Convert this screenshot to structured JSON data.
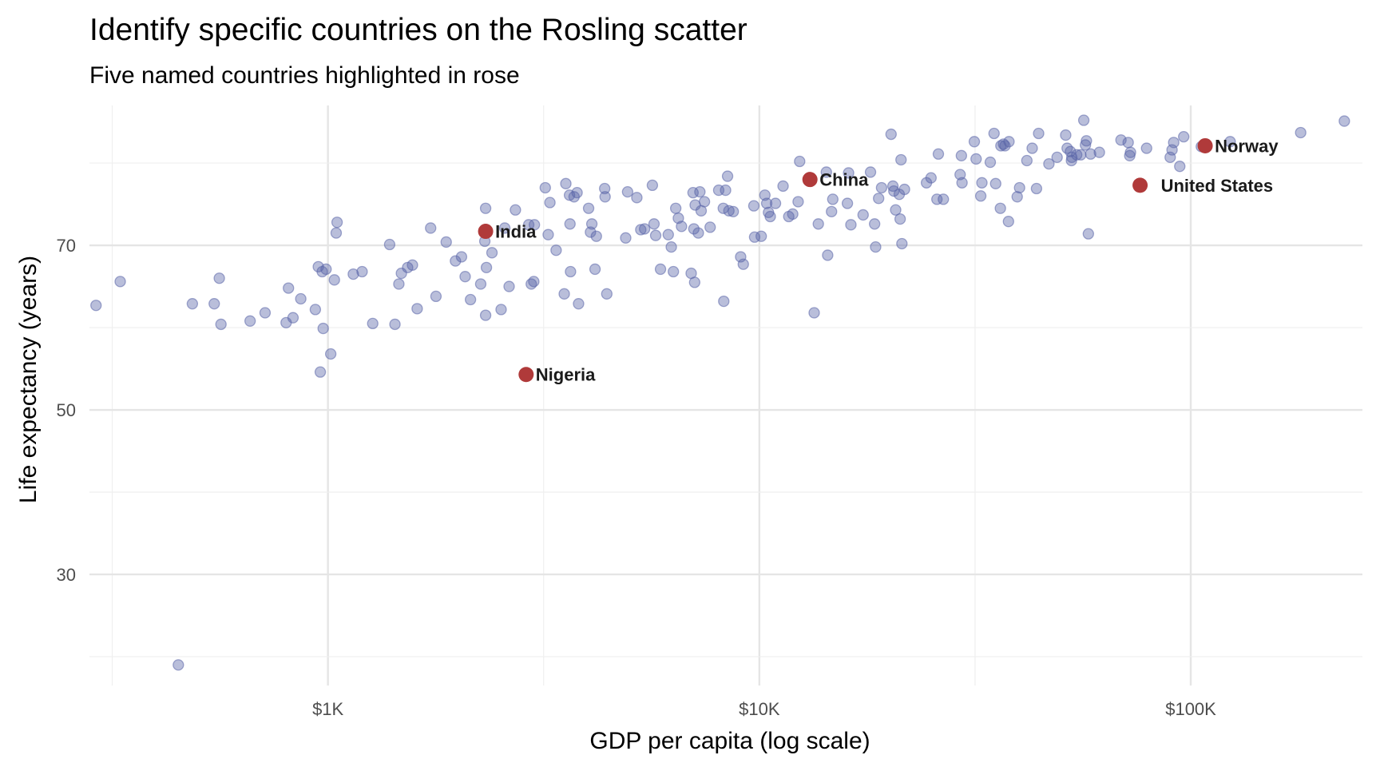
{
  "chart_data": {
    "type": "scatter",
    "title": "Identify specific countries on the Rosling scatter",
    "subtitle": "Five named countries highlighted in rose",
    "xlabel": "GDP per capita (log scale)",
    "ylabel": "Life expectancy (years)",
    "x_scale": "log10",
    "xlim": [
      280,
      250000
    ],
    "ylim": [
      16.5,
      87
    ],
    "x_ticks": [
      {
        "value": 1000,
        "label": "$1K"
      },
      {
        "value": 10000,
        "label": "$10K"
      },
      {
        "value": 100000,
        "label": "$100K"
      }
    ],
    "y_ticks": [
      {
        "value": 30,
        "label": "30"
      },
      {
        "value": 50,
        "label": "50"
      },
      {
        "value": 70,
        "label": "70"
      }
    ],
    "grid": true,
    "colors": {
      "points": "#5964a8",
      "highlight": "#b03a3a"
    },
    "series": [
      {
        "name": "",
        "points": [
          [
            290,
            62.7
          ],
          [
            330,
            65.6
          ],
          [
            450,
            19.0
          ],
          [
            485,
            62.9
          ],
          [
            545,
            62.9
          ],
          [
            560,
            66.0
          ],
          [
            565,
            60.4
          ],
          [
            660,
            60.8
          ],
          [
            715,
            61.8
          ],
          [
            800,
            60.6
          ],
          [
            810,
            64.8
          ],
          [
            830,
            61.2
          ],
          [
            865,
            63.5
          ],
          [
            935,
            62.2
          ],
          [
            950,
            67.4
          ],
          [
            960,
            54.6
          ],
          [
            970,
            66.8
          ],
          [
            975,
            59.9
          ],
          [
            990,
            67.1
          ],
          [
            1015,
            56.8
          ],
          [
            1035,
            65.8
          ],
          [
            1045,
            71.5
          ],
          [
            1050,
            72.8
          ],
          [
            1145,
            66.5
          ],
          [
            1200,
            66.8
          ],
          [
            1270,
            60.5
          ],
          [
            1390,
            70.1
          ],
          [
            1430,
            60.4
          ],
          [
            1460,
            65.3
          ],
          [
            1480,
            66.6
          ],
          [
            1530,
            67.3
          ],
          [
            1570,
            67.6
          ],
          [
            1610,
            62.3
          ],
          [
            1730,
            72.1
          ],
          [
            1780,
            63.8
          ],
          [
            1880,
            70.4
          ],
          [
            1975,
            68.1
          ],
          [
            2040,
            68.6
          ],
          [
            2080,
            66.2
          ],
          [
            2140,
            63.4
          ],
          [
            2260,
            65.3
          ],
          [
            2320,
            74.5
          ],
          [
            2330,
            67.3
          ],
          [
            2320,
            61.5
          ],
          [
            2310,
            70.5
          ],
          [
            2400,
            69.1
          ],
          [
            2520,
            62.2
          ],
          [
            2570,
            72.1
          ],
          [
            2630,
            65.0
          ],
          [
            2720,
            74.3
          ],
          [
            2920,
            72.5
          ],
          [
            2960,
            65.3
          ],
          [
            3000,
            65.6
          ],
          [
            3010,
            72.5
          ],
          [
            3190,
            77.0
          ],
          [
            3240,
            71.3
          ],
          [
            3270,
            75.2
          ],
          [
            3380,
            69.4
          ],
          [
            3530,
            64.1
          ],
          [
            3560,
            77.5
          ],
          [
            3630,
            76.1
          ],
          [
            3640,
            72.6
          ],
          [
            3650,
            66.8
          ],
          [
            3720,
            75.9
          ],
          [
            3780,
            76.4
          ],
          [
            3810,
            62.9
          ],
          [
            4020,
            74.5
          ],
          [
            4060,
            71.6
          ],
          [
            4090,
            72.6
          ],
          [
            4160,
            67.1
          ],
          [
            4190,
            71.1
          ],
          [
            4380,
            76.9
          ],
          [
            4390,
            75.9
          ],
          [
            4430,
            64.1
          ],
          [
            4900,
            70.9
          ],
          [
            4950,
            76.5
          ],
          [
            5200,
            75.8
          ],
          [
            5310,
            71.9
          ],
          [
            5420,
            72.0
          ],
          [
            5650,
            77.3
          ],
          [
            5700,
            72.6
          ],
          [
            5750,
            71.2
          ],
          [
            5900,
            67.1
          ],
          [
            6150,
            71.3
          ],
          [
            6250,
            69.8
          ],
          [
            6320,
            66.8
          ],
          [
            6400,
            74.5
          ],
          [
            6490,
            73.3
          ],
          [
            6600,
            72.3
          ],
          [
            6950,
            66.6
          ],
          [
            7020,
            76.4
          ],
          [
            7050,
            72.0
          ],
          [
            7080,
            65.5
          ],
          [
            7100,
            74.9
          ],
          [
            7220,
            71.5
          ],
          [
            7280,
            76.5
          ],
          [
            7330,
            74.2
          ],
          [
            7460,
            75.3
          ],
          [
            7690,
            72.2
          ],
          [
            8050,
            76.7
          ],
          [
            8250,
            74.5
          ],
          [
            8270,
            63.2
          ],
          [
            8350,
            76.7
          ],
          [
            8440,
            78.4
          ],
          [
            8500,
            74.2
          ],
          [
            8700,
            74.1
          ],
          [
            9050,
            68.6
          ],
          [
            9180,
            67.7
          ],
          [
            9710,
            74.8
          ],
          [
            9750,
            71.0
          ],
          [
            10100,
            71.1
          ],
          [
            10300,
            76.1
          ],
          [
            10400,
            75.1
          ],
          [
            10500,
            74.0
          ],
          [
            10600,
            73.5
          ],
          [
            10900,
            75.1
          ],
          [
            11350,
            77.2
          ],
          [
            11700,
            73.5
          ],
          [
            11950,
            73.8
          ],
          [
            12300,
            75.3
          ],
          [
            12400,
            80.2
          ],
          [
            13400,
            61.8
          ],
          [
            13700,
            72.6
          ],
          [
            14300,
            78.9
          ],
          [
            14400,
            68.8
          ],
          [
            14700,
            74.1
          ],
          [
            14800,
            75.6
          ],
          [
            16000,
            75.1
          ],
          [
            16100,
            78.8
          ],
          [
            16300,
            72.5
          ],
          [
            17400,
            73.7
          ],
          [
            18100,
            78.9
          ],
          [
            18500,
            72.6
          ],
          [
            18600,
            69.8
          ],
          [
            18900,
            75.7
          ],
          [
            19200,
            77.0
          ],
          [
            20200,
            83.5
          ],
          [
            20400,
            77.2
          ],
          [
            20500,
            76.6
          ],
          [
            20700,
            74.3
          ],
          [
            21100,
            76.2
          ],
          [
            21200,
            73.2
          ],
          [
            21300,
            80.4
          ],
          [
            21400,
            70.2
          ],
          [
            21700,
            76.8
          ],
          [
            24400,
            77.6
          ],
          [
            25000,
            78.2
          ],
          [
            25800,
            75.6
          ],
          [
            26000,
            81.1
          ],
          [
            26700,
            75.6
          ],
          [
            29200,
            78.6
          ],
          [
            29400,
            80.9
          ],
          [
            29500,
            77.6
          ],
          [
            31500,
            82.6
          ],
          [
            31800,
            80.5
          ],
          [
            32600,
            76.0
          ],
          [
            32800,
            77.6
          ],
          [
            34300,
            80.1
          ],
          [
            35000,
            83.6
          ],
          [
            35300,
            77.5
          ],
          [
            36200,
            74.5
          ],
          [
            36300,
            82.1
          ],
          [
            36800,
            82.3
          ],
          [
            37100,
            82.1
          ],
          [
            37800,
            72.9
          ],
          [
            37900,
            82.6
          ],
          [
            39600,
            75.9
          ],
          [
            40100,
            77.0
          ],
          [
            41700,
            80.3
          ],
          [
            42900,
            81.8
          ],
          [
            43900,
            76.9
          ],
          [
            44400,
            83.6
          ],
          [
            46900,
            79.9
          ],
          [
            49000,
            80.7
          ],
          [
            51300,
            83.4
          ],
          [
            51700,
            81.8
          ],
          [
            52600,
            81.4
          ],
          [
            52900,
            80.3
          ],
          [
            53000,
            80.7
          ],
          [
            54400,
            81.0
          ],
          [
            55600,
            81.0
          ],
          [
            56500,
            85.2
          ],
          [
            57000,
            82.2
          ],
          [
            57300,
            82.7
          ],
          [
            57900,
            71.4
          ],
          [
            58600,
            81.1
          ],
          [
            61400,
            81.3
          ],
          [
            68900,
            82.8
          ],
          [
            71600,
            82.5
          ],
          [
            72200,
            80.9
          ],
          [
            72500,
            81.3
          ],
          [
            79000,
            81.8
          ],
          [
            89600,
            80.7
          ],
          [
            90500,
            81.6
          ],
          [
            91300,
            82.5
          ],
          [
            94300,
            79.6
          ],
          [
            96300,
            83.2
          ],
          [
            105800,
            82.0
          ],
          [
            123400,
            82.6
          ],
          [
            179800,
            83.7
          ],
          [
            227000,
            85.1
          ]
        ]
      }
    ],
    "highlights": [
      {
        "name": "India",
        "x": 2320,
        "y": 71.7
      },
      {
        "name": "Nigeria",
        "x": 2880,
        "y": 54.3
      },
      {
        "name": "China",
        "x": 13100,
        "y": 78.0
      },
      {
        "name": "United States",
        "x": 76300,
        "y": 77.3
      },
      {
        "name": "Norway",
        "x": 108000,
        "y": 82.1
      }
    ]
  }
}
